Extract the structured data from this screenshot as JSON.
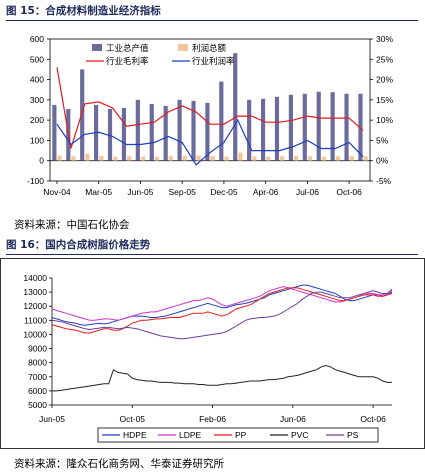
{
  "fig15": {
    "title": "图 15：合成材料制造业经济指标",
    "source": "资料来源：中国石化协会"
  },
  "fig16": {
    "title": "图 16：国内合成树脂价格走势",
    "source": "资料来源：隆众石化商务网、华泰证券研究所"
  },
  "chart_data": [
    {
      "type": "bar+line",
      "title": "",
      "categories": [
        "Nov-04",
        "Dec-04",
        "Jan-05",
        "Feb-05",
        "Mar-05",
        "Apr-05",
        "May-05",
        "Jun-05",
        "Jul-05",
        "Aug-05",
        "Sep-05",
        "Oct-05",
        "Nov-05",
        "Dec-05",
        "Jan-06",
        "Feb-06",
        "Apr-06",
        "May-06",
        "Jun-06",
        "Jul-06",
        "Aug-06",
        "Sep-06",
        "Oct-06"
      ],
      "x_tick_labels": [
        "Nov-04",
        "Mar-05",
        "Jun-05",
        "Sep-05",
        "Dec-05",
        "Apr-06",
        "Jul-06",
        "Oct-06"
      ],
      "x_tick_index": [
        0,
        3,
        6,
        9,
        12,
        15,
        18,
        21
      ],
      "left_axis": {
        "ylim": [
          -100,
          600
        ],
        "ticks": [
          "-100",
          "0",
          "100",
          "200",
          "300",
          "400",
          "500",
          "600"
        ]
      },
      "right_axis": {
        "ylim": [
          -5,
          30
        ],
        "ticks": [
          "-5%",
          "0%",
          "5%",
          "10%",
          "15%",
          "20%",
          "25%",
          "30%"
        ]
      },
      "bar_series": [
        {
          "name": "工业总产值",
          "color": "#6b6b9c",
          "axis": "left",
          "values": [
            275,
            255,
            450,
            275,
            255,
            260,
            300,
            280,
            270,
            300,
            295,
            285,
            390,
            530,
            300,
            305,
            315,
            325,
            330,
            340,
            338,
            330,
            330
          ]
        },
        {
          "name": "利润总额",
          "color": "#f3c79a",
          "axis": "left",
          "values": [
            25,
            22,
            35,
            24,
            20,
            22,
            20,
            20,
            22,
            24,
            26,
            22,
            20,
            40,
            22,
            20,
            22,
            24,
            22,
            20,
            22,
            22,
            22
          ]
        }
      ],
      "line_series": [
        {
          "name": "行业毛利率",
          "color": "#e31a1c",
          "axis": "right",
          "values": [
            23,
            3,
            14,
            14.5,
            13,
            8.5,
            9,
            9.5,
            12,
            13.5,
            12,
            9,
            9,
            11,
            11,
            9.5,
            9.5,
            10,
            11,
            10.5,
            10.5,
            10.5,
            7.5
          ]
        },
        {
          "name": "行业利润率",
          "color": "#1f3fbf",
          "axis": "right",
          "values": [
            9,
            4,
            6.5,
            7,
            6,
            4,
            4,
            4.5,
            6,
            4.5,
            -1,
            2,
            4.5,
            10,
            2.5,
            2.5,
            2.5,
            3.5,
            5,
            3,
            3,
            4.5,
            1
          ]
        }
      ],
      "legend": "top"
    },
    {
      "type": "line",
      "title": "",
      "x_tick_labels": [
        "Jun-05",
        "Oct-05",
        "Feb-06",
        "Jun-06",
        "Oct-06"
      ],
      "x_tick_index": [
        0,
        17,
        34,
        51,
        68
      ],
      "ylim": [
        5000,
        14000
      ],
      "y_ticks": [
        "5000",
        "6000",
        "7000",
        "8000",
        "9000",
        "10000",
        "11000",
        "12000",
        "13000",
        "14000"
      ],
      "series": [
        {
          "name": "HDPE",
          "color": "#1f3fbf",
          "values": [
            11200,
            11100,
            11000,
            10900,
            10850,
            10800,
            10700,
            10650,
            10700,
            10750,
            10800,
            10750,
            10800,
            10900,
            11000,
            11100,
            11200,
            11300,
            11300,
            11300,
            11250,
            11200,
            11200,
            11250,
            11300,
            11400,
            11500,
            11600,
            11700,
            11800,
            11900,
            12000,
            12100,
            12200,
            12100,
            12000,
            11900,
            11900,
            12000,
            12100,
            12150,
            12200,
            12300,
            12400,
            12500,
            12600,
            12800,
            12900,
            13000,
            13100,
            13200,
            13300,
            13400,
            13500,
            13500,
            13400,
            13300,
            13200,
            13100,
            13000,
            12900,
            12700,
            12500,
            12400,
            12400,
            12500,
            12600,
            12700,
            12800,
            12800,
            12700,
            12800,
            13000
          ]
        },
        {
          "name": "LDPE",
          "color": "#cc33cc",
          "values": [
            11800,
            11700,
            11600,
            11500,
            11400,
            11300,
            11200,
            11100,
            11000,
            11000,
            11050,
            11100,
            11100,
            11050,
            11000,
            11100,
            11200,
            11300,
            11400,
            11500,
            11550,
            11600,
            11600,
            11700,
            11800,
            11900,
            12000,
            12100,
            12200,
            12300,
            12400,
            12400,
            12500,
            12600,
            12500,
            12300,
            12100,
            12000,
            12100,
            12200,
            12300,
            12400,
            12500,
            12600,
            12700,
            12900,
            13100,
            13200,
            13300,
            13400,
            13300,
            13200,
            13100,
            13000,
            12900,
            12800,
            12700,
            12600,
            12500,
            12400,
            12300,
            12300,
            12400,
            12500,
            12600,
            12700,
            12800,
            12900,
            12900,
            12800,
            12800,
            12900,
            13100
          ]
        },
        {
          "name": "PP",
          "color": "#e31a1c",
          "values": [
            10700,
            10600,
            10500,
            10400,
            10350,
            10300,
            10200,
            10100,
            10100,
            10200,
            10300,
            10400,
            10400,
            10300,
            10300,
            10400,
            10600,
            10800,
            10900,
            11000,
            11000,
            11050,
            11100,
            11100,
            11150,
            11200,
            11200,
            11200,
            11300,
            11400,
            11500,
            11500,
            11500,
            11600,
            11500,
            11400,
            11300,
            11400,
            11600,
            11800,
            11900,
            12000,
            12100,
            12300,
            12500,
            12700,
            12900,
            13000,
            13100,
            13200,
            13300,
            13300,
            13300,
            13200,
            13100,
            13000,
            12900,
            12800,
            12700,
            12600,
            12500,
            12400,
            12400,
            12500,
            12600,
            12700,
            12800,
            12800,
            12800,
            12700,
            12700,
            12800,
            12900
          ]
        },
        {
          "name": "PVC",
          "color": "#222222",
          "values": [
            6000,
            6000,
            6050,
            6100,
            6150,
            6200,
            6250,
            6300,
            6350,
            6400,
            6450,
            6500,
            6500,
            7500,
            7300,
            7250,
            7200,
            6900,
            6800,
            6750,
            6700,
            6700,
            6650,
            6600,
            6600,
            6600,
            6550,
            6550,
            6500,
            6500,
            6500,
            6450,
            6450,
            6400,
            6400,
            6400,
            6450,
            6500,
            6500,
            6550,
            6600,
            6650,
            6700,
            6700,
            6700,
            6750,
            6800,
            6800,
            6850,
            6900,
            7000,
            7050,
            7100,
            7200,
            7300,
            7400,
            7500,
            7700,
            7800,
            7700,
            7500,
            7400,
            7300,
            7200,
            7100,
            7000,
            7000,
            7000,
            7000,
            6900,
            6700,
            6600,
            6600
          ]
        },
        {
          "name": "PS",
          "color": "#6b3fa0",
          "values": [
            11000,
            10950,
            10900,
            10800,
            10700,
            10600,
            10500,
            10400,
            10350,
            10400,
            10450,
            10500,
            10500,
            10450,
            10400,
            10450,
            10500,
            10450,
            10400,
            10300,
            10200,
            10100,
            10000,
            9900,
            9850,
            9800,
            9750,
            9700,
            9700,
            9750,
            9800,
            9850,
            9900,
            9950,
            10000,
            10050,
            10100,
            10200,
            10400,
            10600,
            10800,
            11000,
            11100,
            11150,
            11200,
            11200,
            11250,
            11300,
            11400,
            11600,
            11800,
            12000,
            12200,
            12500,
            12700,
            12900,
            13000,
            13000,
            12900,
            12800,
            12700,
            12600,
            12600,
            12600,
            12700,
            12800,
            12900,
            13000,
            13100,
            13000,
            12900,
            12900,
            13200
          ]
        }
      ],
      "legend": "bottom"
    }
  ]
}
